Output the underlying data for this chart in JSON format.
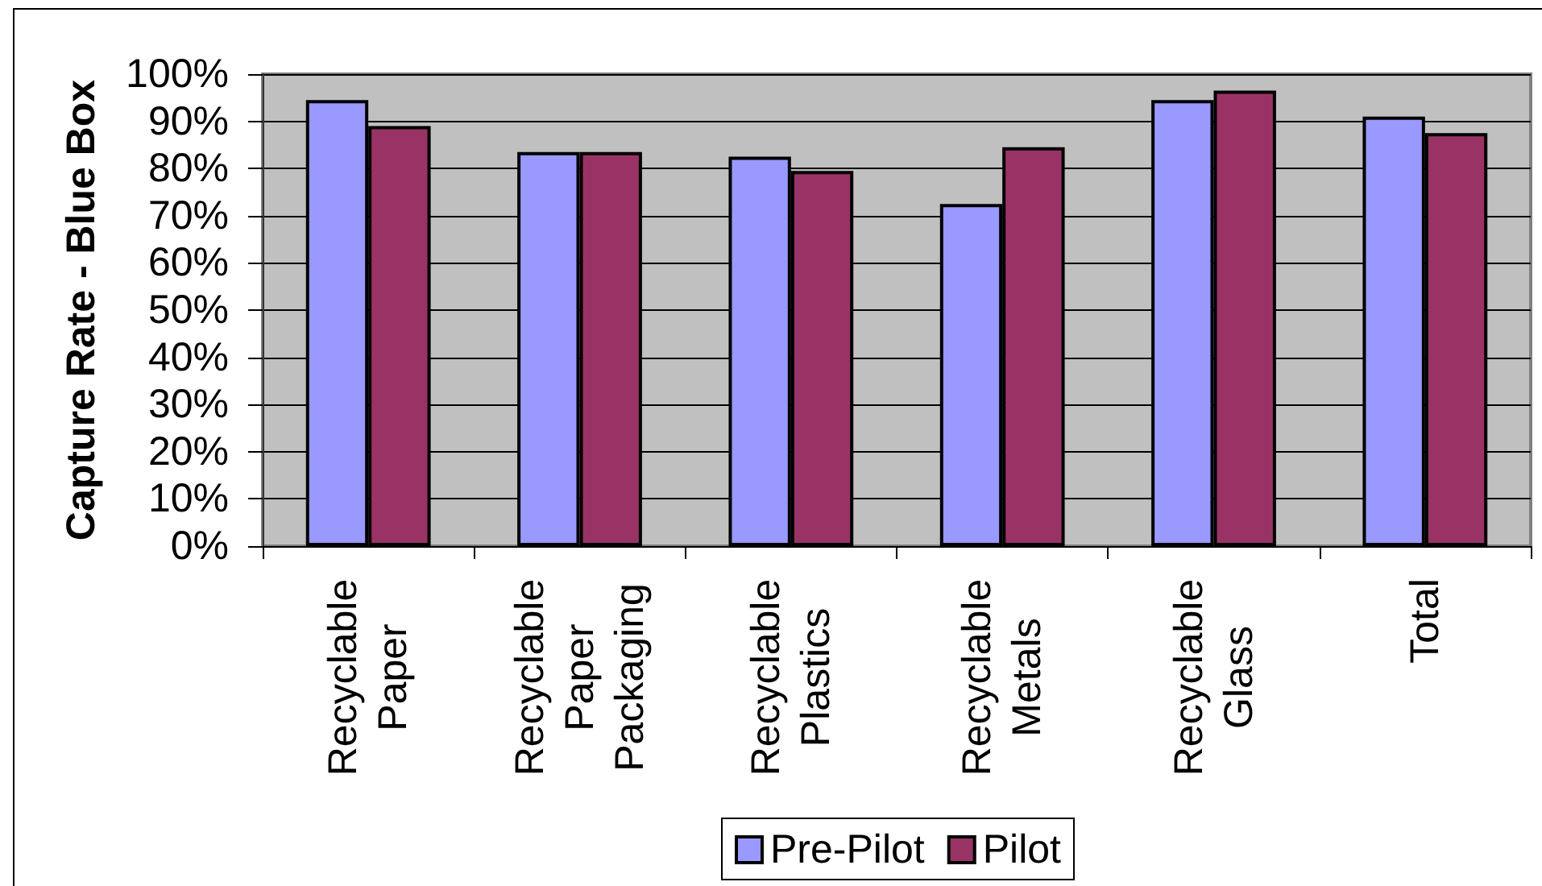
{
  "chart_data": {
    "type": "bar",
    "ylabel": "Capture Rate - Blue Box",
    "categories": [
      "Recyclable Paper",
      "Recyclable Paper Packaging",
      "Recyclable Plastics",
      "Recyclable Metals",
      "Recyclable Glass",
      "Total"
    ],
    "series": [
      {
        "name": "Pre-Pilot",
        "color": "#9999ff",
        "values": [
          94.5,
          83.5,
          82.5,
          72.5,
          94.5,
          91
        ]
      },
      {
        "name": "Pilot",
        "color": "#993366",
        "values": [
          89,
          83.5,
          79.5,
          84.5,
          96.5,
          87.5
        ]
      }
    ],
    "ylim": [
      0,
      100
    ],
    "yticks": [
      {
        "value": 0,
        "label": "0%"
      },
      {
        "value": 10,
        "label": "10%"
      },
      {
        "value": 20,
        "label": "20%"
      },
      {
        "value": 30,
        "label": "30%"
      },
      {
        "value": 40,
        "label": "40%"
      },
      {
        "value": 50,
        "label": "50%"
      },
      {
        "value": 60,
        "label": "60%"
      },
      {
        "value": 70,
        "label": "70%"
      },
      {
        "value": 80,
        "label": "80%"
      },
      {
        "value": 90,
        "label": "90%"
      },
      {
        "value": 100,
        "label": "100%"
      }
    ],
    "grid": "y",
    "legend": "bottom"
  }
}
